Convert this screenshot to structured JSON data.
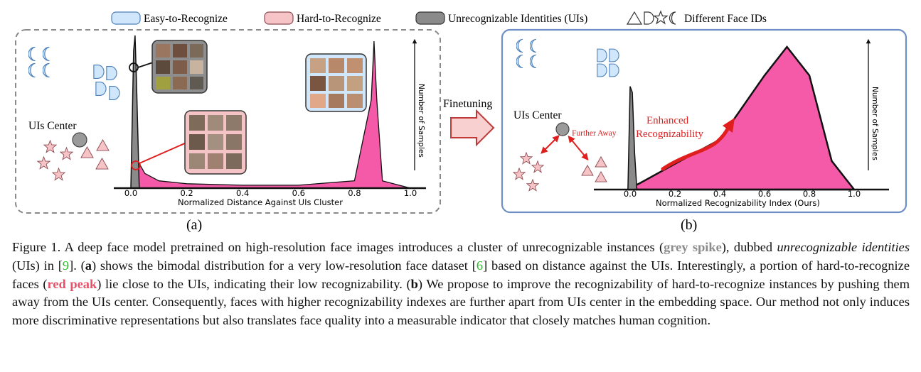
{
  "legend": {
    "easy": "Easy-to-Recognize",
    "hard": "Hard-to-Recognize",
    "uis": "Unrecognizable Identities (UIs)",
    "face_ids": "Different Face IDs"
  },
  "colors": {
    "easy_fill": "#cfe6fb",
    "easy_stroke": "#4a7fb8",
    "hard_fill": "#f6c3c6",
    "uis_fill": "#8a8a8a",
    "pink_density": "#f55aa8",
    "arrow_red": "#e01e1e",
    "panel_b_border": "#6f8fc4",
    "panel_a_border": "#8a8a8a"
  },
  "panel_a": {
    "label": "(a)",
    "uis_center": "UIs Center",
    "ylabel": "Number of Samples",
    "xlabel": "Normalized Distance Against UIs Cluster",
    "ticks": [
      "0.0",
      "0.2",
      "0.4",
      "0.6",
      "0.8",
      "1.0"
    ]
  },
  "panel_b": {
    "label": "(b)",
    "uis_center": "UIs Center",
    "further_away": "Further Away",
    "enhanced_1": "Enhanced",
    "enhanced_2": "Recognizability",
    "ylabel": "Number of Samples",
    "xlabel": "Normalized Recognizability Index (Ours)",
    "ticks": [
      "0.0",
      "0.2",
      "0.4",
      "0.6",
      "0.8",
      "1.0"
    ]
  },
  "finetuning": "Finetuning",
  "chart_data": [
    {
      "type": "area",
      "xlabel": "Normalized Distance Against UIs Cluster",
      "ylabel": "Number of Samples",
      "xlim": [
        0.0,
        1.0
      ],
      "series": [
        {
          "name": "Unrecognizable Identities (UIs)",
          "x": [
            0.0,
            0.01,
            0.015,
            0.02,
            0.03
          ],
          "values": [
            0,
            0.9,
            1.0,
            0.7,
            0
          ]
        },
        {
          "name": "Hard-to-Recognize",
          "x": [
            0.0,
            0.02,
            0.05,
            0.1,
            0.2,
            0.4,
            0.6,
            0.8,
            0.86,
            0.87,
            0.88,
            0.9,
            1.0
          ],
          "values": [
            0,
            0.2,
            0.1,
            0.05,
            0.03,
            0.02,
            0.02,
            0.05,
            0.6,
            1.0,
            0.6,
            0.05,
            0
          ]
        }
      ]
    },
    {
      "type": "area",
      "xlabel": "Normalized Recognizability Index (Ours)",
      "ylabel": "Number of Samples",
      "xlim": [
        0.0,
        1.0
      ],
      "series": [
        {
          "name": "Unrecognizable Identities (UIs)",
          "x": [
            -0.01,
            0.0,
            0.01,
            0.02,
            0.03
          ],
          "values": [
            0,
            0.85,
            0.8,
            0.3,
            0
          ]
        },
        {
          "name": "Hard-to-Recognize",
          "x": [
            -0.01,
            0.05,
            0.2,
            0.4,
            0.6,
            0.7,
            0.8,
            0.9,
            1.0
          ],
          "values": [
            0,
            0.05,
            0.18,
            0.35,
            0.8,
            1.0,
            0.8,
            0.2,
            0
          ]
        }
      ]
    }
  ],
  "caption": {
    "p1": "Figure 1.  A deep face model pretrained on high-resolution face images introduces a cluster of unrecognizable instances (",
    "grey_spike": "grey spike",
    "p2": "), dubbed ",
    "uis_em": "unrecognizable identities",
    "p3": " (UIs) in [",
    "cite9": "9",
    "p4": "]. (",
    "a_bold": "a",
    "p5": ") shows the bimodal distribution for a very low-resolution face dataset [",
    "cite6": "6",
    "p6": "] based on distance against the UIs. Interestingly, a portion of hard-to-recognize faces (",
    "red_peak": "red peak",
    "p7": ") lie close to the UIs, indicating their low recognizability. (",
    "b_bold": "b",
    "p8": ") We propose to improve the recognizability of hard-to-recognize instances by pushing them away from the UIs center.  Consequently, faces with higher recognizability indexes are further apart from UIs center in the embedding space. Our method not only induces more discriminative representations but also translates face quality into a measurable indicator that closely matches human cognition."
  }
}
